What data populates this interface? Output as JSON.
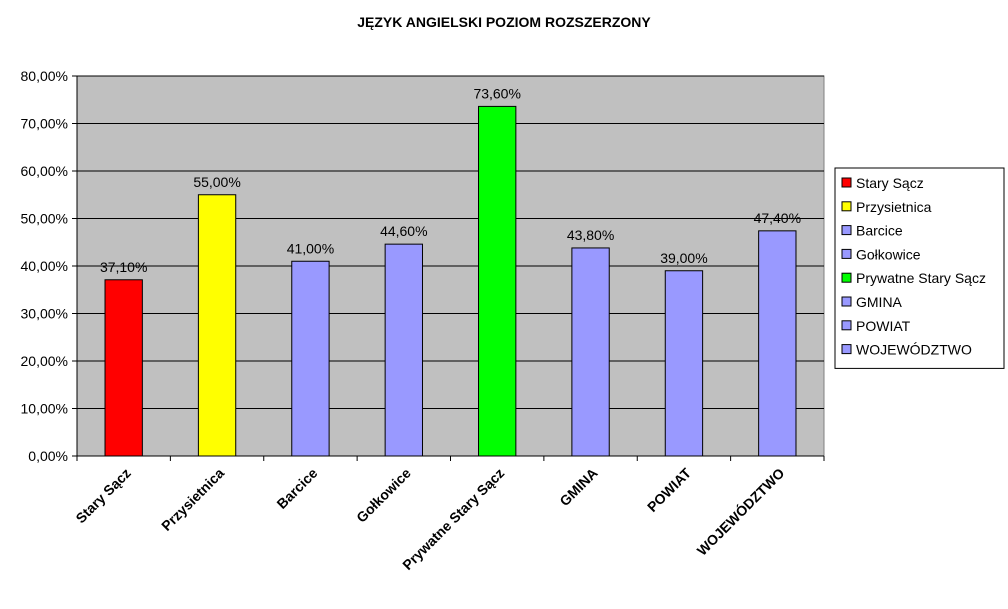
{
  "chart_data": {
    "type": "bar",
    "title": "JĘZYK ANGIELSKI POZIOM ROZSZERZONY",
    "categories": [
      "Stary Sącz",
      "Przysietnica",
      "Barcice",
      "Gołkowice",
      "Prywatne Stary Sącz",
      "GMINA",
      "POWIAT",
      "WOJEWÓDZTWO"
    ],
    "values": [
      37.1,
      55.0,
      41.0,
      44.6,
      73.6,
      43.8,
      39.0,
      47.4
    ],
    "data_labels": [
      "37,10%",
      "55,00%",
      "41,00%",
      "44,60%",
      "73,60%",
      "43,80%",
      "39,00%",
      "47,40%"
    ],
    "colors": [
      "#ff0000",
      "#ffff00",
      "#9999ff",
      "#9999ff",
      "#00ff00",
      "#9999ff",
      "#9999ff",
      "#9999ff"
    ],
    "ylim": [
      0,
      80
    ],
    "yticks": [
      0,
      10,
      20,
      30,
      40,
      50,
      60,
      70,
      80
    ],
    "ytick_labels": [
      "0,00%",
      "10,00%",
      "20,00%",
      "30,00%",
      "40,00%",
      "50,00%",
      "60,00%",
      "70,00%",
      "80,00%"
    ],
    "grid": true,
    "plot_background": "#c0c0c0",
    "legend": {
      "placement": "right",
      "entries": [
        "Stary Sącz",
        "Przysietnica",
        "Barcice",
        "Gołkowice",
        "Prywatne Stary Sącz",
        "GMINA",
        "POWIAT",
        "WOJEWÓDZTWO"
      ]
    },
    "xlabel": "",
    "ylabel": ""
  }
}
